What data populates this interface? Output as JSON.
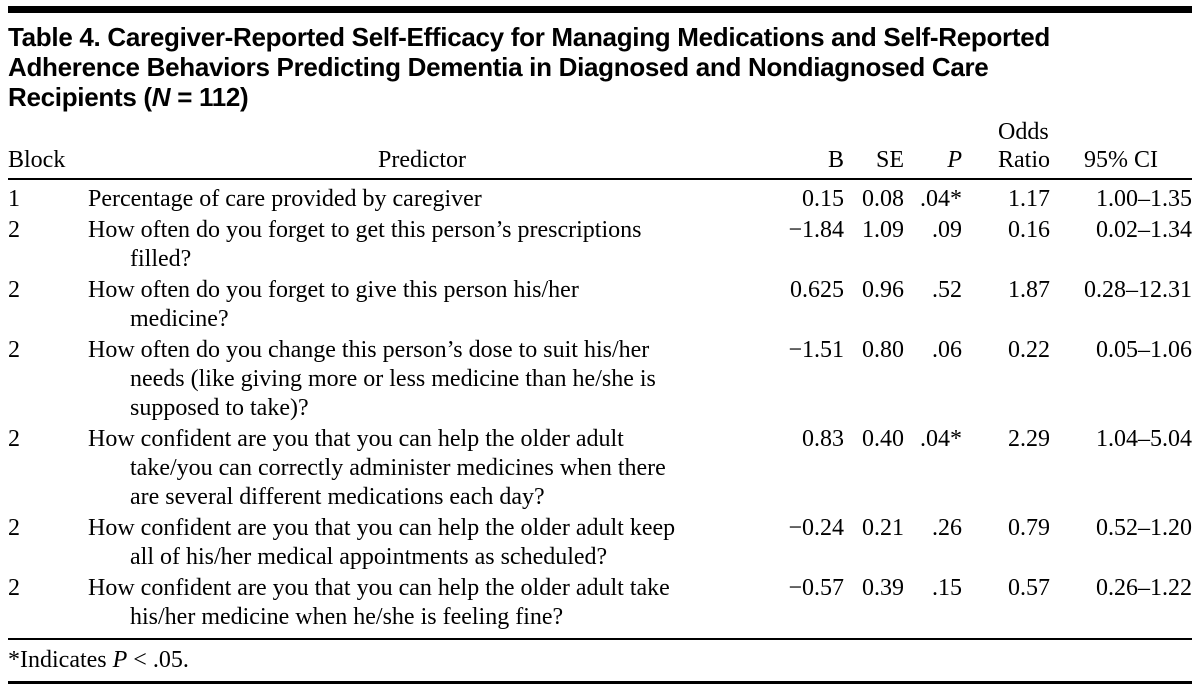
{
  "colors": {
    "text": "#000000",
    "background": "#ffffff",
    "rule": "#000000"
  },
  "table": {
    "title_lines": [
      "Table 4. Caregiver-Reported Self-Efficacy for Managing Medications and Self-Reported",
      "Adherence Behaviors Predicting Dementia in Diagnosed and Nondiagnosed Care"
    ],
    "title_line3": {
      "prefix": "Recipients (",
      "n": "N",
      "suffix": " = 112)"
    },
    "headers": {
      "block": "Block",
      "predictor": "Predictor",
      "b": "B",
      "se": "SE",
      "p": "P",
      "odds_line1": "Odds",
      "odds_line2": "Ratio",
      "ci": "95% CI"
    },
    "rows": [
      {
        "block": "1",
        "predictor_lines": [
          "Percentage of care provided by caregiver"
        ],
        "b": "0.15",
        "se": "0.08",
        "p": ".04*",
        "odds_ratio": "1.17",
        "ci": "1.00–1.35"
      },
      {
        "block": "2",
        "predictor_lines": [
          "How often do you forget to get this person’s prescriptions",
          "filled?"
        ],
        "b": "−1.84",
        "se": "1.09",
        "p": ".09",
        "odds_ratio": "0.16",
        "ci": "0.02–1.34"
      },
      {
        "block": "2",
        "predictor_lines": [
          "How often do you forget to give this person his/her",
          "medicine?"
        ],
        "b": "0.625",
        "se": "0.96",
        "p": ".52",
        "odds_ratio": "1.87",
        "ci": "0.28–12.31"
      },
      {
        "block": "2",
        "predictor_lines": [
          "How often do you change this person’s dose to suit his/her",
          "needs (like giving more or less medicine than he/she is",
          "supposed to take)?"
        ],
        "b": "−1.51",
        "se": "0.80",
        "p": ".06",
        "odds_ratio": "0.22",
        "ci": "0.05–1.06"
      },
      {
        "block": "2",
        "predictor_lines": [
          "How confident are you that you can help the older adult",
          "take/you can correctly administer medicines when there",
          "are several different medications each day?"
        ],
        "b": "0.83",
        "se": "0.40",
        "p": ".04*",
        "odds_ratio": "2.29",
        "ci": "1.04–5.04"
      },
      {
        "block": "2",
        "predictor_lines": [
          "How confident are you that you can help the older adult keep",
          "all of his/her medical appointments as scheduled?"
        ],
        "b": "−0.24",
        "se": "0.21",
        "p": ".26",
        "odds_ratio": "0.79",
        "ci": "0.52–1.20"
      },
      {
        "block": "2",
        "predictor_lines": [
          "How confident are you that you can help the older adult take",
          "his/her medicine when he/she is feeling fine?"
        ],
        "b": "−0.57",
        "se": "0.39",
        "p": ".15",
        "odds_ratio": "0.57",
        "ci": "0.26–1.22"
      }
    ],
    "footnote": {
      "prefix": "*Indicates ",
      "p": "P",
      "suffix": " < .05."
    }
  }
}
